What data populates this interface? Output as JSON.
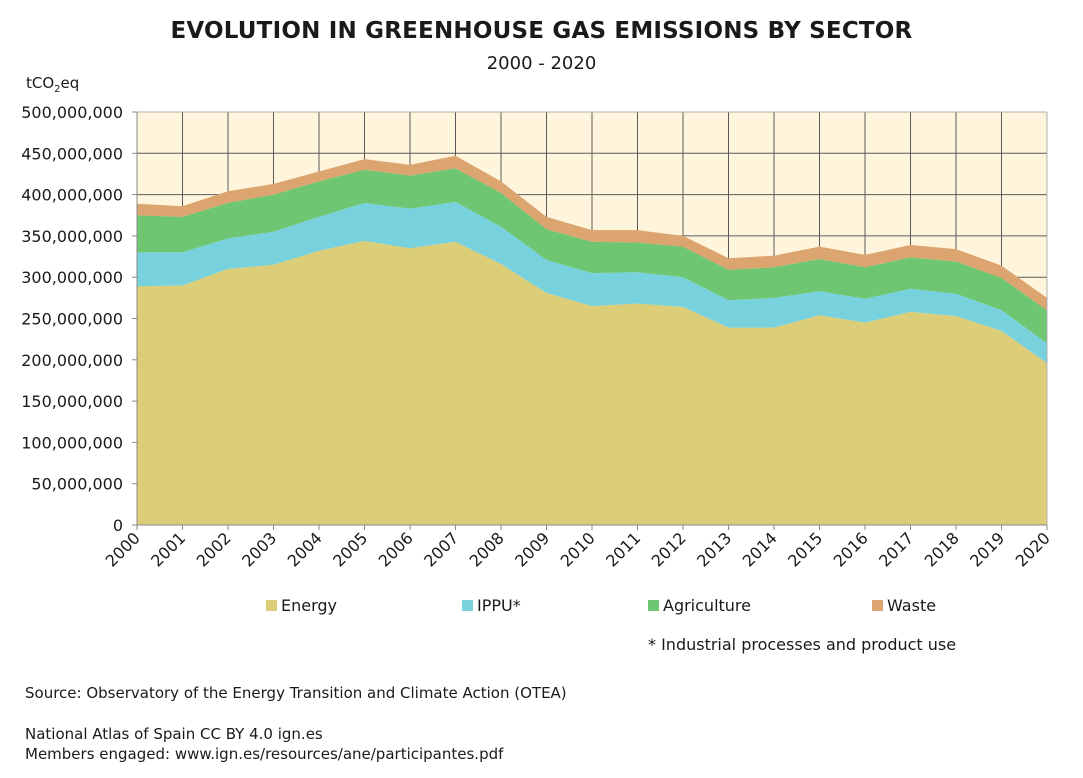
{
  "chart_data": {
    "type": "area",
    "stacked": true,
    "title": "EVOLUTION IN GREENHOUSE GAS EMISSIONS BY SECTOR",
    "subtitle": "2000 - 2020",
    "xlabel": "",
    "ylabel": "tCO2eq",
    "ylabel_parts": {
      "pre": "tCO",
      "sub": "2",
      "post": "eq"
    },
    "ylim": [
      0,
      500000000
    ],
    "yticks": [
      0,
      50000000,
      100000000,
      150000000,
      200000000,
      250000000,
      300000000,
      350000000,
      400000000,
      450000000,
      500000000
    ],
    "ytick_labels": [
      "0",
      "50,000,000",
      "100,000,000",
      "150,000,000",
      "200,000,000",
      "250,000,000",
      "300,000,000",
      "350,000,000",
      "400,000,000",
      "450,000,000",
      "500,000,000"
    ],
    "grid": true,
    "legend_position": "bottom",
    "x": [
      "2000",
      "2001",
      "2002",
      "2003",
      "2004",
      "2005",
      "2006",
      "2007",
      "2008",
      "2009",
      "2010",
      "2011",
      "2012",
      "2013",
      "2014",
      "2015",
      "2016",
      "2017",
      "2018",
      "2019",
      "2020"
    ],
    "series": [
      {
        "name": "Energy",
        "color": "#dccd78",
        "values": [
          289000000,
          290000000,
          310000000,
          315000000,
          332000000,
          344000000,
          335000000,
          343000000,
          316000000,
          281000000,
          265000000,
          268000000,
          264000000,
          239000000,
          239000000,
          254000000,
          245000000,
          258000000,
          253000000,
          235000000,
          196000000
        ]
      },
      {
        "name": "IPPU*",
        "color": "#78d2de",
        "values": [
          41000000,
          40000000,
          37000000,
          40000000,
          41000000,
          46000000,
          48000000,
          48000000,
          45000000,
          40000000,
          40000000,
          38000000,
          36000000,
          33000000,
          36000000,
          29000000,
          29000000,
          28000000,
          27000000,
          25000000,
          24000000
        ]
      },
      {
        "name": "Agriculture",
        "color": "#6ec673",
        "values": [
          45000000,
          43000000,
          43000000,
          45000000,
          43000000,
          40000000,
          40000000,
          41000000,
          41000000,
          37000000,
          38000000,
          36000000,
          37000000,
          37000000,
          37000000,
          39000000,
          38000000,
          38000000,
          39000000,
          39000000,
          40000000
        ]
      },
      {
        "name": "Waste",
        "color": "#dca46e",
        "values": [
          14000000,
          13000000,
          14000000,
          13000000,
          12000000,
          13000000,
          13000000,
          15000000,
          14000000,
          15000000,
          14000000,
          15000000,
          13000000,
          14000000,
          14000000,
          15000000,
          15000000,
          15000000,
          15000000,
          15000000,
          15000000
        ]
      }
    ],
    "plot_background": "#fff5dc",
    "grid_color": "#5a5a5a"
  },
  "legend": {
    "items": [
      {
        "label": "Energy",
        "color": "#dccd78"
      },
      {
        "label": "IPPU*",
        "color": "#78d2de"
      },
      {
        "label": "Agriculture",
        "color": "#6ec673"
      },
      {
        "label": "Waste",
        "color": "#dca46e"
      }
    ]
  },
  "footnote": "* Industrial processes and product use",
  "source": "Source: Observatory of the Energy Transition and Climate Action (OTEA)",
  "credits": {
    "line1": "National Atlas of Spain CC BY 4.0 ign.es",
    "line2": "Members engaged: www.ign.es/resources/ane/participantes.pdf"
  }
}
